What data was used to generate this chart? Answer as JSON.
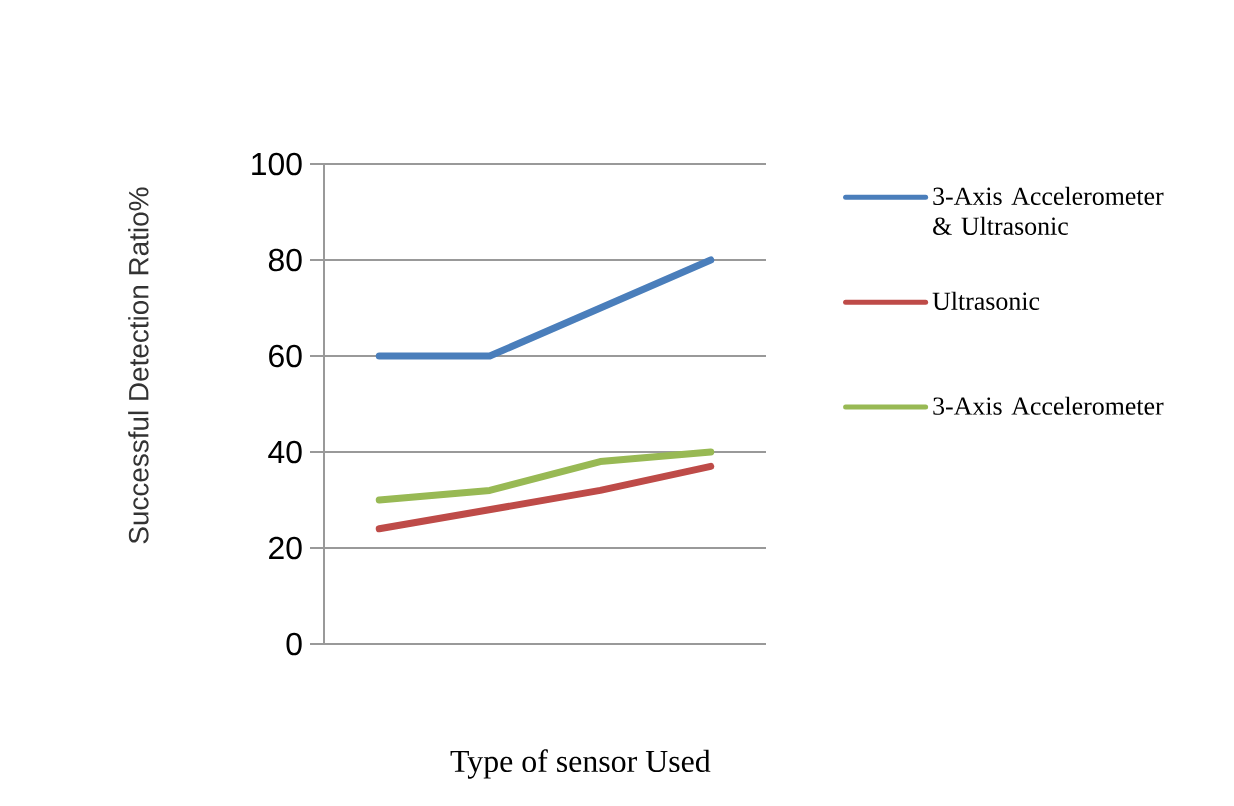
{
  "chart_data": {
    "type": "line",
    "xlabel": "Type of sensor Used",
    "ylabel": "Successful Detection Ratio%",
    "categories": [
      null,
      null,
      null,
      null
    ],
    "series": [
      {
        "name": "3-Axis Accelerometer & Ultrasonic",
        "color": "#4a7ebb",
        "values": [
          60,
          60,
          70,
          80
        ]
      },
      {
        "name": "Ultrasonic",
        "color": "#be4b48",
        "values": [
          24,
          28,
          32,
          37
        ]
      },
      {
        "name": "3-Axis Accelerometer",
        "color": "#98b954",
        "values": [
          30,
          32,
          38,
          40
        ]
      }
    ],
    "ylim": [
      0,
      100
    ],
    "yticks": [
      0,
      20,
      40,
      60,
      80,
      100
    ],
    "grid": "y",
    "legend": "right"
  }
}
